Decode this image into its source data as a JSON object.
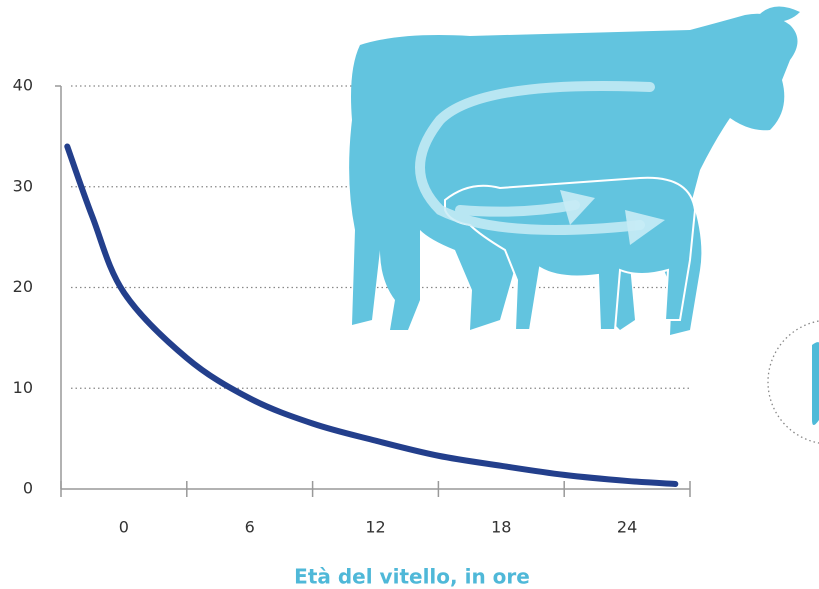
{
  "chart_data": {
    "type": "line",
    "x": [
      -2.7,
      -1.5,
      0,
      3,
      6,
      9,
      12,
      15,
      18,
      21,
      24,
      26.3
    ],
    "values": [
      34,
      27,
      19.5,
      13,
      9,
      6.5,
      4.8,
      3.3,
      2.3,
      1.4,
      0.8,
      0.5
    ],
    "color": "#233f8c",
    "xlim": [
      -3,
      27
    ],
    "xticks": [
      0,
      6,
      12,
      18,
      24
    ],
    "ylim": [
      0,
      40
    ],
    "yticks": [
      0,
      10,
      20,
      30,
      40
    ],
    "xlabel": "Età del vitello, in ore",
    "grid": true
  }
}
